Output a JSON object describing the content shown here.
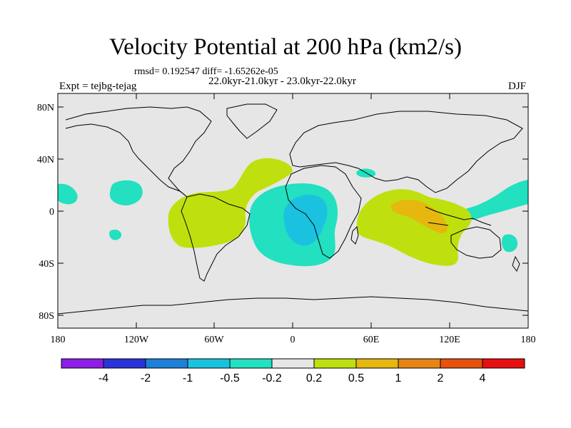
{
  "title": "Velocity Potential at 200 hPa (km2/s)",
  "stats": "rmsd= 0.192547 diff= -1.65262e-05",
  "period": "22.0kyr-21.0kyr - 23.0kyr-22.0kyr",
  "experiment": "Expt = tejbg-tejag",
  "season": "DJF",
  "map": {
    "lon_ticks": [
      "180",
      "120W",
      "60W",
      "0",
      "60E",
      "120E",
      "180"
    ],
    "lat_ticks": [
      "80N",
      "40N",
      "0",
      "40S",
      "80S"
    ],
    "land_color": "#e6e6e6"
  },
  "colorbar": {
    "colors": [
      "#8c1ee6",
      "#2a33d8",
      "#1e7fd8",
      "#1bc2e0",
      "#22e0c0",
      "#e6e6e6",
      "#bfe00e",
      "#e6b70f",
      "#e68514",
      "#e6520e",
      "#e61010"
    ],
    "labels": [
      "-4",
      "-2",
      "-1",
      "-0.5",
      "-0.2",
      "0.2",
      "0.5",
      "1",
      "2",
      "4"
    ]
  }
}
